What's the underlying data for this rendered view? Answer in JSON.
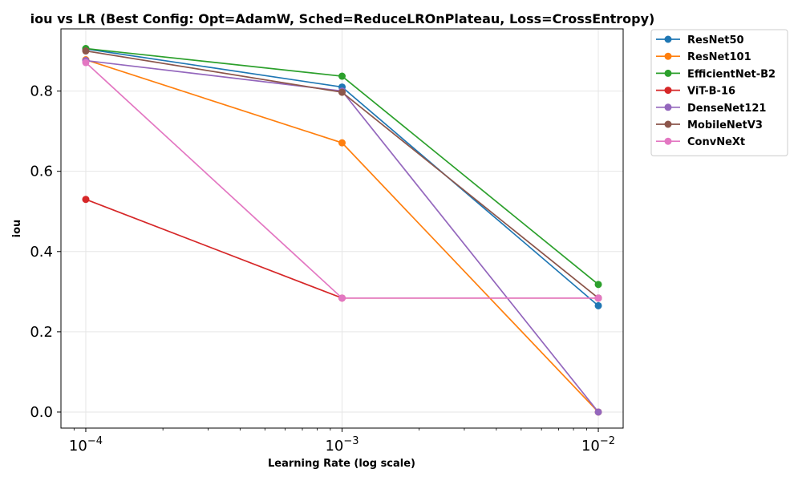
{
  "chart_data": {
    "type": "line",
    "title": "iou vs LR (Best Config: Opt=AdamW, Sched=ReduceLROnPlateau, Loss=CrossEntropy)",
    "xlabel": "Learning Rate (log scale)",
    "ylabel": "iou",
    "xscale": "log",
    "x": [
      0.0001,
      0.001,
      0.01
    ],
    "xtick_labels": [
      "10^-4",
      "10^-3",
      "10^-2"
    ],
    "xlim": [
      8e-05,
      0.0125
    ],
    "ylim": [
      -0.04,
      0.955
    ],
    "yticks": [
      0.0,
      0.2,
      0.4,
      0.6,
      0.8
    ],
    "ytick_labels": [
      "0.0",
      "0.2",
      "0.4",
      "0.6",
      "0.8"
    ],
    "grid": true,
    "legend_position": "outside-right-top",
    "series": [
      {
        "name": "ResNet50",
        "color": "#1f77b4",
        "values": [
          0.905,
          0.81,
          0.265
        ]
      },
      {
        "name": "ResNet101",
        "color": "#ff7f0e",
        "values": [
          0.878,
          0.671,
          0.0
        ]
      },
      {
        "name": "EfficientNet-B2",
        "color": "#2ca02c",
        "values": [
          0.906,
          0.837,
          0.318
        ]
      },
      {
        "name": "ViT-B-16",
        "color": "#d62728",
        "values": [
          0.53,
          0.284,
          0.284
        ]
      },
      {
        "name": "DenseNet121",
        "color": "#9467bd",
        "values": [
          0.876,
          0.8,
          0.0
        ]
      },
      {
        "name": "MobileNetV3",
        "color": "#8c564b",
        "values": [
          0.9,
          0.797,
          0.284
        ]
      },
      {
        "name": "ConvNeXt",
        "color": "#e377c2",
        "values": [
          0.871,
          0.284,
          0.284
        ]
      }
    ]
  }
}
